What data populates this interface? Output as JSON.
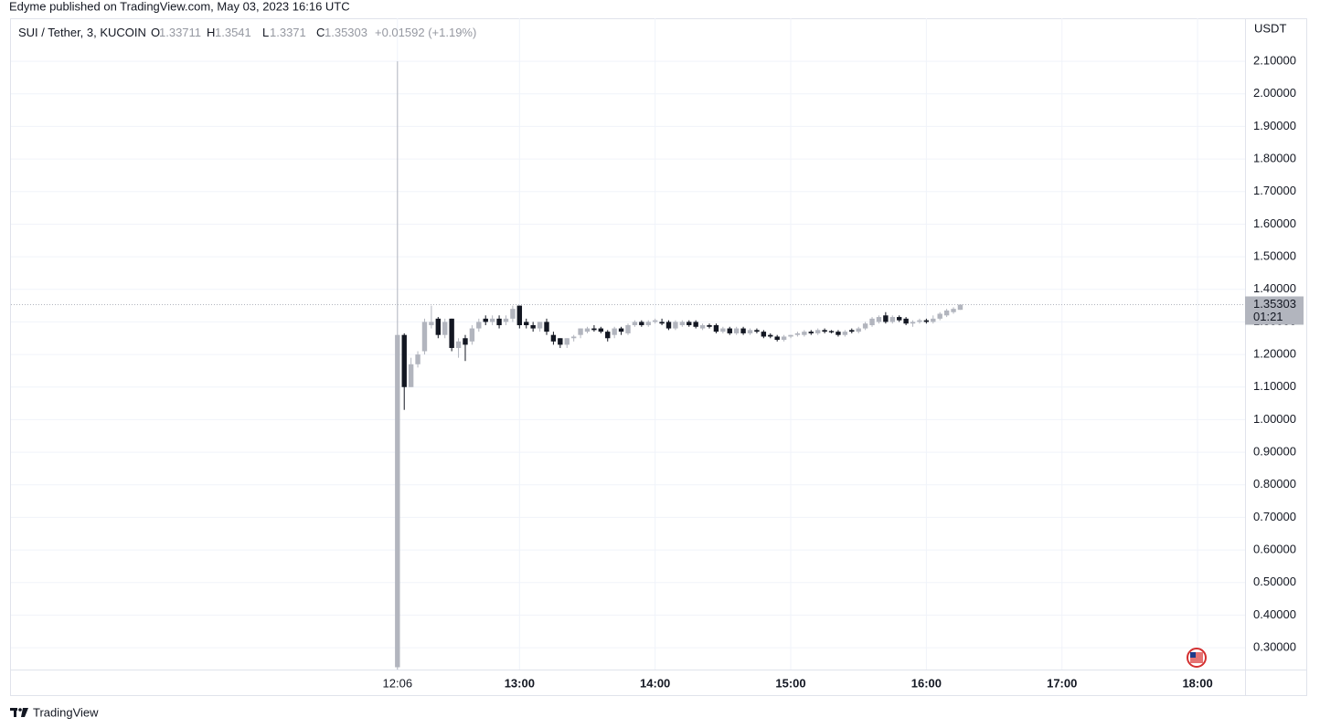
{
  "header": {
    "publisher": "Edyme published on TradingView.com, May 03, 2023 16:16 UTC"
  },
  "footer": {
    "brand": "TradingView"
  },
  "chart_data": {
    "type": "candlestick",
    "legend": {
      "symbol": "SUI / Tether, 3, KUCOIN",
      "labels": [
        "O",
        "H",
        "L",
        "C"
      ],
      "change": "+0.01592 (+1.19%)"
    },
    "y_axis_label": "USDT",
    "countdown": "01:21",
    "up_color": "#b2b5be",
    "down_color": "#131722",
    "grid": true,
    "x": [
      "12:06",
      "12:09",
      "12:12",
      "12:15",
      "12:18",
      "12:21",
      "12:24",
      "12:27",
      "12:30",
      "12:33",
      "12:36",
      "12:39",
      "12:42",
      "12:45",
      "12:48",
      "12:51",
      "12:54",
      "12:57",
      "13:00",
      "13:03",
      "13:06",
      "13:09",
      "13:12",
      "13:15",
      "13:18",
      "13:21",
      "13:24",
      "13:27",
      "13:30",
      "13:33",
      "13:36",
      "13:39",
      "13:42",
      "13:45",
      "13:48",
      "13:51",
      "13:54",
      "13:57",
      "14:00",
      "14:03",
      "14:06",
      "14:09",
      "14:12",
      "14:15",
      "14:18",
      "14:21",
      "14:24",
      "14:27",
      "14:30",
      "14:33",
      "14:36",
      "14:39",
      "14:42",
      "14:45",
      "14:48",
      "14:51",
      "14:54",
      "14:57",
      "15:00",
      "15:03",
      "15:06",
      "15:09",
      "15:12",
      "15:15",
      "15:18",
      "15:21",
      "15:24",
      "15:27",
      "15:30",
      "15:33",
      "15:36",
      "15:39",
      "15:42",
      "15:45",
      "15:48",
      "15:51",
      "15:54",
      "15:57",
      "16:00",
      "16:03",
      "16:06",
      "16:09",
      "16:12",
      "16:15"
    ],
    "open": [
      0.24,
      1.26,
      1.1,
      1.17,
      1.21,
      1.29,
      1.31,
      1.26,
      1.31,
      1.22,
      1.25,
      1.24,
      1.28,
      1.31,
      1.3,
      1.31,
      1.3,
      1.31,
      1.35,
      1.3,
      1.29,
      1.28,
      1.3,
      1.26,
      1.25,
      1.23,
      1.25,
      1.26,
      1.27,
      1.28,
      1.28,
      1.27,
      1.26,
      1.28,
      1.265,
      1.29,
      1.3,
      1.29,
      1.3,
      1.3,
      1.3,
      1.28,
      1.29,
      1.3,
      1.3,
      1.28,
      1.29,
      1.29,
      1.27,
      1.28,
      1.265,
      1.28,
      1.265,
      1.275,
      1.27,
      1.26,
      1.255,
      1.245,
      1.255,
      1.26,
      1.26,
      1.27,
      1.265,
      1.275,
      1.272,
      1.27,
      1.26,
      1.275,
      1.27,
      1.28,
      1.29,
      1.3,
      1.32,
      1.3,
      1.315,
      1.31,
      1.295,
      1.3,
      1.305,
      1.3,
      1.31,
      1.32,
      1.33,
      1.33711
    ],
    "high": [
      2.1,
      1.265,
      1.19,
      1.21,
      1.31,
      1.35,
      1.315,
      1.31,
      1.31,
      1.25,
      1.26,
      1.29,
      1.31,
      1.32,
      1.32,
      1.32,
      1.32,
      1.35,
      1.35,
      1.31,
      1.3,
      1.3,
      1.31,
      1.27,
      1.25,
      1.25,
      1.26,
      1.28,
      1.285,
      1.29,
      1.285,
      1.275,
      1.285,
      1.285,
      1.295,
      1.305,
      1.305,
      1.305,
      1.31,
      1.31,
      1.305,
      1.305,
      1.305,
      1.305,
      1.305,
      1.295,
      1.295,
      1.295,
      1.285,
      1.285,
      1.285,
      1.285,
      1.28,
      1.28,
      1.275,
      1.265,
      1.26,
      1.26,
      1.26,
      1.27,
      1.275,
      1.275,
      1.28,
      1.28,
      1.275,
      1.275,
      1.275,
      1.28,
      1.285,
      1.3,
      1.315,
      1.32,
      1.33,
      1.32,
      1.32,
      1.315,
      1.305,
      1.31,
      1.31,
      1.32,
      1.33,
      1.34,
      1.345,
      1.3541
    ],
    "low": [
      0.233,
      1.03,
      1.1,
      1.16,
      1.2,
      1.28,
      1.25,
      1.25,
      1.21,
      1.19,
      1.18,
      1.23,
      1.27,
      1.29,
      1.29,
      1.28,
      1.29,
      1.3,
      1.28,
      1.28,
      1.27,
      1.27,
      1.26,
      1.23,
      1.22,
      1.22,
      1.24,
      1.25,
      1.265,
      1.27,
      1.265,
      1.24,
      1.25,
      1.26,
      1.26,
      1.285,
      1.285,
      1.285,
      1.295,
      1.29,
      1.275,
      1.275,
      1.285,
      1.285,
      1.28,
      1.275,
      1.28,
      1.265,
      1.265,
      1.26,
      1.26,
      1.26,
      1.26,
      1.265,
      1.25,
      1.25,
      1.24,
      1.24,
      1.25,
      1.255,
      1.255,
      1.26,
      1.26,
      1.265,
      1.265,
      1.255,
      1.255,
      1.265,
      1.265,
      1.275,
      1.285,
      1.295,
      1.295,
      1.295,
      1.3,
      1.29,
      1.285,
      1.295,
      1.295,
      1.295,
      1.305,
      1.315,
      1.325,
      1.3371
    ],
    "close": [
      1.26,
      1.1,
      1.17,
      1.2,
      1.3,
      1.3,
      1.26,
      1.3,
      1.22,
      1.24,
      1.23,
      1.28,
      1.3,
      1.3,
      1.31,
      1.29,
      1.31,
      1.34,
      1.29,
      1.29,
      1.28,
      1.3,
      1.27,
      1.24,
      1.23,
      1.25,
      1.255,
      1.28,
      1.28,
      1.275,
      1.27,
      1.25,
      1.28,
      1.27,
      1.29,
      1.3,
      1.29,
      1.3,
      1.305,
      1.295,
      1.28,
      1.3,
      1.3,
      1.29,
      1.285,
      1.29,
      1.285,
      1.27,
      1.28,
      1.265,
      1.28,
      1.265,
      1.275,
      1.27,
      1.255,
      1.255,
      1.245,
      1.255,
      1.26,
      1.265,
      1.27,
      1.265,
      1.275,
      1.27,
      1.268,
      1.26,
      1.27,
      1.27,
      1.28,
      1.295,
      1.31,
      1.315,
      1.3,
      1.315,
      1.305,
      1.295,
      1.3,
      1.305,
      1.3,
      1.31,
      1.325,
      1.335,
      1.34,
      1.35303
    ],
    "xlim": [
      "09:15",
      "18:21"
    ],
    "xticks": [
      "12:06",
      "13:00",
      "14:00",
      "15:00",
      "16:00",
      "17:00",
      "18:00"
    ],
    "ylim": [
      0.233,
      2.232
    ],
    "yticks": [
      {
        "value": 0.3,
        "label": "0.30000"
      },
      {
        "value": 0.4,
        "label": "0.40000"
      },
      {
        "value": 0.5,
        "label": "0.50000"
      },
      {
        "value": 0.6,
        "label": "0.60000"
      },
      {
        "value": 0.7,
        "label": "0.70000"
      },
      {
        "value": 0.8,
        "label": "0.80000"
      },
      {
        "value": 0.9,
        "label": "0.90000"
      },
      {
        "value": 1.0,
        "label": "1.00000"
      },
      {
        "value": 1.1,
        "label": "1.10000"
      },
      {
        "value": 1.2,
        "label": "1.20000"
      },
      {
        "value": 1.3,
        "label": "1.30000"
      },
      {
        "value": 1.4,
        "label": "1.40000"
      },
      {
        "value": 1.5,
        "label": "1.50000"
      },
      {
        "value": 1.6,
        "label": "1.60000"
      },
      {
        "value": 1.7,
        "label": "1.70000"
      },
      {
        "value": 1.8,
        "label": "1.80000"
      },
      {
        "value": 1.9,
        "label": "1.90000"
      },
      {
        "value": 2.0,
        "label": "2.00000"
      },
      {
        "value": 2.1,
        "label": "2.10000"
      }
    ]
  }
}
